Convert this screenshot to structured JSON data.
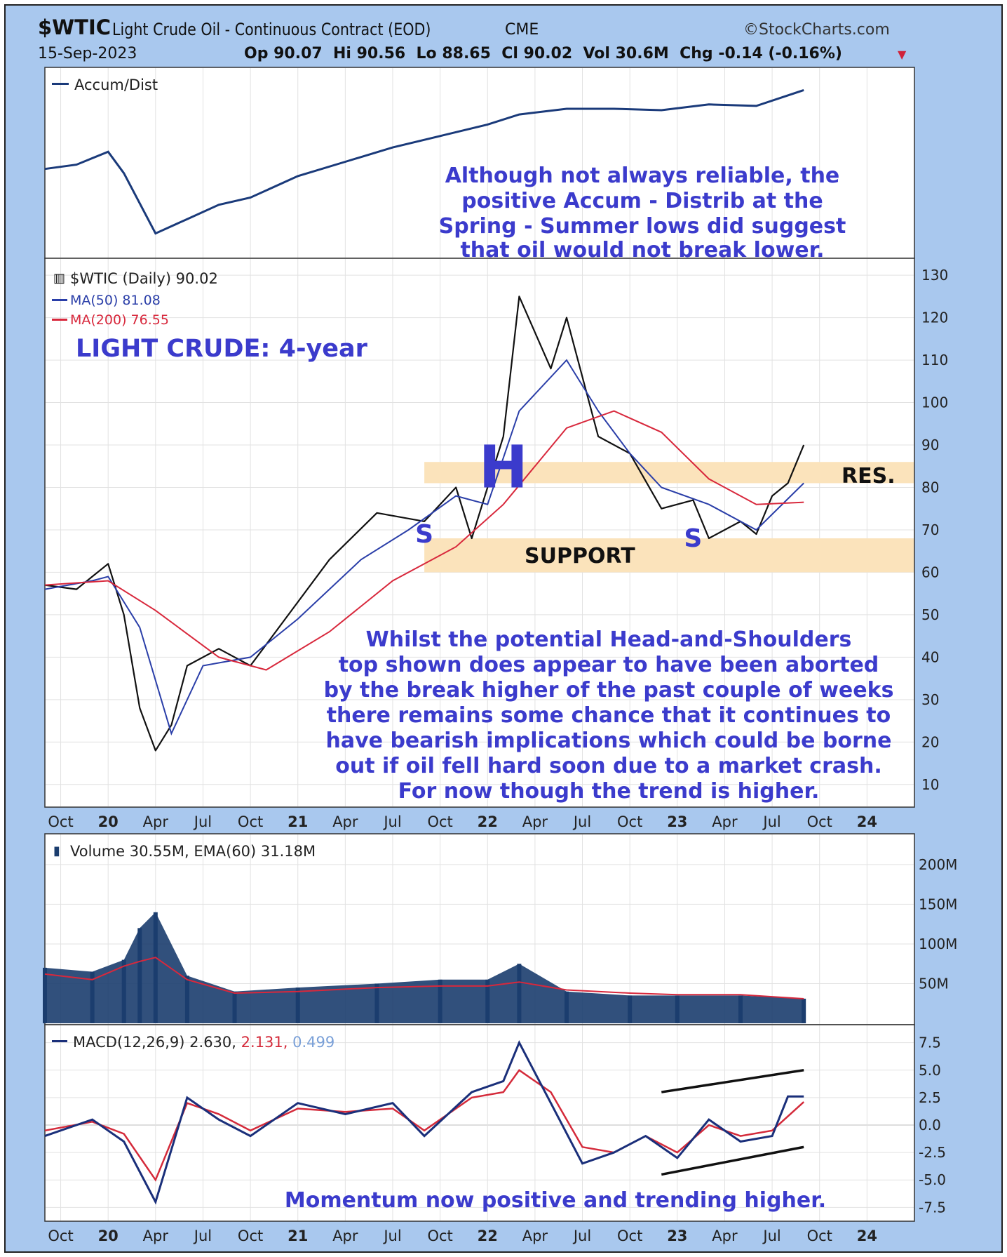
{
  "header": {
    "symbol": "$WTIC",
    "name": "Light Crude Oil - Continuous Contract (EOD)",
    "exchange": "CME",
    "source": "©StockCharts.com",
    "date": "15-Sep-2023",
    "ohlc": "Op 90.07  Hi 90.56  Lo 88.65  Cl 90.02  Vol 30.6M  Chg -0.14 (-0.16%)",
    "chg_arrow": "▼"
  },
  "colors": {
    "background": "#a9c8ee",
    "panel": "#ffffff",
    "ad_line": "#1a3a7a",
    "ma50": "#2a3ea8",
    "ma200": "#d8283c",
    "band": "#fbe3bb",
    "annotation": "#3b3bcc",
    "volume": "#1b3d6e",
    "macd_line": "#1a2f7a",
    "signal_line": "#d42a3a",
    "histogram": "#8aa8d8"
  },
  "chart_data": [
    {
      "type": "line",
      "panel": "accum-dist",
      "legend": "Accum/Dist",
      "x": [
        "2019-09",
        "2019-11",
        "2020-01",
        "2020-02",
        "2020-04",
        "2020-06",
        "2020-08",
        "2020-10",
        "2021-01",
        "2021-04",
        "2021-07",
        "2021-10",
        "2022-01",
        "2022-03",
        "2022-06",
        "2022-09",
        "2022-12",
        "2023-03",
        "2023-06",
        "2023-09"
      ],
      "values": [
        0.55,
        0.58,
        0.67,
        0.52,
        0.1,
        0.2,
        0.3,
        0.35,
        0.5,
        0.6,
        0.7,
        0.78,
        0.86,
        0.93,
        0.97,
        0.97,
        0.96,
        1.0,
        0.99,
        1.1
      ],
      "annotation": [
        "Although not always reliable, the",
        "positive Accum - Distrib at the",
        "Spring - Summer lows did suggest",
        "that oil would not break lower."
      ]
    },
    {
      "type": "line",
      "panel": "price",
      "title": "LIGHT CRUDE: 4-year",
      "legend": [
        "$WTIC (Daily) 90.02",
        "MA(50) 81.08",
        "MA(200) 76.55"
      ],
      "ylim": [
        5,
        133
      ],
      "yticks": [
        10,
        20,
        30,
        40,
        50,
        60,
        70,
        80,
        90,
        100,
        110,
        120,
        130
      ],
      "x_labels": [
        "Oct",
        "20",
        "Apr",
        "Jul",
        "Oct",
        "21",
        "Apr",
        "Jul",
        "Oct",
        "22",
        "Apr",
        "Jul",
        "Oct",
        "23",
        "Apr",
        "Jul",
        "Oct",
        "24"
      ],
      "series": [
        {
          "name": "$WTIC",
          "x": [
            "2019-09",
            "2019-11",
            "2020-01",
            "2020-02",
            "2020-03",
            "2020-04",
            "2020-05",
            "2020-06",
            "2020-08",
            "2020-10",
            "2020-12",
            "2021-03",
            "2021-06",
            "2021-09",
            "2021-11",
            "2021-12",
            "2022-02",
            "2022-03",
            "2022-05",
            "2022-06",
            "2022-08",
            "2022-10",
            "2022-12",
            "2023-02",
            "2023-03",
            "2023-05",
            "2023-06",
            "2023-07",
            "2023-08",
            "2023-09"
          ],
          "values": [
            57,
            56,
            62,
            50,
            28,
            18,
            24,
            38,
            42,
            38,
            48,
            63,
            74,
            72,
            80,
            68,
            92,
            125,
            108,
            120,
            92,
            88,
            75,
            77,
            68,
            72,
            69,
            78,
            81,
            90
          ]
        },
        {
          "name": "MA(50)",
          "x": [
            "2019-09",
            "2019-12",
            "2020-01",
            "2020-03",
            "2020-05",
            "2020-07",
            "2020-10",
            "2021-01",
            "2021-05",
            "2021-08",
            "2021-11",
            "2022-01",
            "2022-03",
            "2022-06",
            "2022-08",
            "2022-10",
            "2022-12",
            "2023-03",
            "2023-06",
            "2023-09"
          ],
          "values": [
            56,
            58,
            59,
            47,
            22,
            38,
            40,
            49,
            63,
            70,
            78,
            76,
            98,
            110,
            98,
            88,
            80,
            76,
            70,
            81
          ]
        },
        {
          "name": "MA(200)",
          "x": [
            "2019-09",
            "2020-01",
            "2020-04",
            "2020-08",
            "2020-11",
            "2021-03",
            "2021-07",
            "2021-11",
            "2022-02",
            "2022-06",
            "2022-09",
            "2022-12",
            "2023-03",
            "2023-06",
            "2023-09"
          ],
          "values": [
            57,
            58,
            51,
            40,
            37,
            46,
            58,
            66,
            76,
            94,
            98,
            93,
            82,
            76,
            76.5
          ]
        }
      ],
      "bands": [
        {
          "label": "RES.",
          "from": 81,
          "to": 86
        },
        {
          "label": "SUPPORT",
          "from": 60,
          "to": 68
        }
      ],
      "pattern_labels": [
        {
          "text": "S",
          "x": "2021-09",
          "y": 69
        },
        {
          "text": "H",
          "x": "2022-02",
          "y": 80
        },
        {
          "text": "S",
          "x": "2023-02",
          "y": 68
        }
      ],
      "annotation": [
        "Whilst the potential Head-and-Shoulders",
        "top shown does appear to have been aborted",
        "by the break higher of the past couple of weeks",
        "there remains some chance that it continues to",
        "have bearish implications which could be borne",
        "out if oil fell hard soon due to a market crash.",
        "For now though the trend is higher."
      ]
    },
    {
      "type": "bar",
      "panel": "volume",
      "legend": "Volume 30.55M, EMA(60) 31.18M",
      "ylim": [
        0,
        230
      ],
      "yticks": [
        50,
        100,
        150,
        200
      ],
      "ytick_labels": [
        "50M",
        "100M",
        "150M",
        "200M"
      ],
      "x": [
        "2019-09",
        "2019-12",
        "2020-02",
        "2020-03",
        "2020-04",
        "2020-06",
        "2020-09",
        "2021-01",
        "2021-06",
        "2021-10",
        "2022-01",
        "2022-03",
        "2022-06",
        "2022-10",
        "2023-01",
        "2023-05",
        "2023-09"
      ],
      "values": [
        70,
        65,
        80,
        120,
        140,
        60,
        40,
        45,
        50,
        55,
        55,
        75,
        40,
        35,
        35,
        35,
        31
      ],
      "ema": [
        62,
        55,
        72,
        78,
        83,
        55,
        38,
        40,
        45,
        47,
        47,
        52,
        42,
        38,
        36,
        36,
        31
      ]
    },
    {
      "type": "line",
      "panel": "macd",
      "legend": [
        "MACD(12,26,9) 2.630,",
        "2.131,",
        "0.499"
      ],
      "ylim": [
        -8.5,
        8.5
      ],
      "yticks": [
        -7.5,
        -5,
        -2.5,
        0,
        2.5,
        5,
        7.5
      ],
      "ytick_labels": [
        "-7.5",
        "-5.0",
        "-2.5",
        "0.0",
        "2.5",
        "5.0",
        "7.5"
      ],
      "x_labels": [
        "Oct",
        "20",
        "Apr",
        "Jul",
        "Oct",
        "21",
        "Apr",
        "Jul",
        "Oct",
        "22",
        "Apr",
        "Jul",
        "Oct",
        "23",
        "Apr",
        "Jul",
        "Oct",
        "24"
      ],
      "series": [
        {
          "name": "MACD",
          "x": [
            "2019-09",
            "2019-12",
            "2020-02",
            "2020-04",
            "2020-06",
            "2020-08",
            "2020-10",
            "2021-01",
            "2021-04",
            "2021-07",
            "2021-09",
            "2021-12",
            "2022-02",
            "2022-03",
            "2022-05",
            "2022-07",
            "2022-09",
            "2022-11",
            "2023-01",
            "2023-03",
            "2023-05",
            "2023-07",
            "2023-08",
            "2023-09"
          ],
          "values": [
            -1,
            0.5,
            -1.5,
            -7,
            2.5,
            0.5,
            -1,
            2,
            1,
            2,
            -1,
            3,
            4,
            7.5,
            2,
            -3.5,
            -2.5,
            -1,
            -3,
            0.5,
            -1.5,
            -1,
            2.6,
            2.6
          ]
        },
        {
          "name": "Signal",
          "x": [
            "2019-09",
            "2019-12",
            "2020-02",
            "2020-04",
            "2020-06",
            "2020-08",
            "2020-10",
            "2021-01",
            "2021-04",
            "2021-07",
            "2021-09",
            "2021-12",
            "2022-02",
            "2022-03",
            "2022-05",
            "2022-07",
            "2022-09",
            "2022-11",
            "2023-01",
            "2023-03",
            "2023-05",
            "2023-07",
            "2023-09"
          ],
          "values": [
            -0.5,
            0.3,
            -0.8,
            -5,
            2,
            1,
            -0.5,
            1.5,
            1.2,
            1.5,
            -0.5,
            2.5,
            3,
            5,
            3,
            -2,
            -2.5,
            -1,
            -2.5,
            0,
            -1,
            -0.5,
            2.1
          ]
        }
      ],
      "trendlines": [
        {
          "from": {
            "x": "2022-12",
            "y": 3
          },
          "to": {
            "x": "2023-09",
            "y": 5
          }
        },
        {
          "from": {
            "x": "2022-12",
            "y": -4.5
          },
          "to": {
            "x": "2023-09",
            "y": -2
          }
        }
      ],
      "annotation": "Momentum now positive and trending higher."
    }
  ]
}
